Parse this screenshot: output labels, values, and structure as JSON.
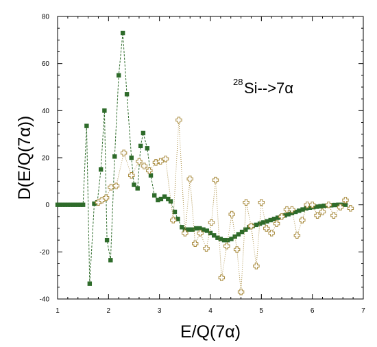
{
  "chart_data": {
    "type": "scatter",
    "title": "",
    "xlabel": "E/Q(7α)",
    "ylabel": "D(E/Q(7α))",
    "xlim": [
      1,
      7
    ],
    "ylim": [
      -40,
      80
    ],
    "xticks": [
      1,
      2,
      3,
      4,
      5,
      6,
      7
    ],
    "yticks": [
      -40,
      -20,
      0,
      20,
      40,
      60,
      80
    ],
    "grid": false,
    "legend": "none",
    "annotation": {
      "sup": "28",
      "main": "Si-->7α"
    },
    "series": [
      {
        "marker": "filled-square",
        "line": "dashed",
        "color": "#2e6b2a",
        "points": [
          [
            1.0,
            0
          ],
          [
            1.05,
            0
          ],
          [
            1.1,
            0
          ],
          [
            1.15,
            0
          ],
          [
            1.2,
            0
          ],
          [
            1.25,
            0
          ],
          [
            1.3,
            0
          ],
          [
            1.35,
            0
          ],
          [
            1.4,
            0
          ],
          [
            1.45,
            0
          ],
          [
            1.5,
            0
          ],
          [
            1.57,
            33.5
          ],
          [
            1.63,
            -33.5
          ],
          [
            1.72,
            0.5
          ],
          [
            1.78,
            1
          ],
          [
            1.85,
            15
          ],
          [
            1.92,
            40
          ],
          [
            1.97,
            -15
          ],
          [
            2.04,
            -23.5
          ],
          [
            2.12,
            20.5
          ],
          [
            2.2,
            55
          ],
          [
            2.28,
            73
          ],
          [
            2.36,
            47
          ],
          [
            2.45,
            20
          ],
          [
            2.5,
            8.5
          ],
          [
            2.57,
            7
          ],
          [
            2.63,
            25
          ],
          [
            2.68,
            30.5
          ],
          [
            2.76,
            24
          ],
          [
            2.83,
            12.5
          ],
          [
            2.9,
            4
          ],
          [
            2.97,
            2
          ],
          [
            3.03,
            2.5
          ],
          [
            3.1,
            3.5
          ],
          [
            3.17,
            2.5
          ],
          [
            3.22,
            1.5
          ],
          [
            3.3,
            -3
          ],
          [
            3.36,
            -6
          ],
          [
            3.44,
            -9.5
          ],
          [
            3.5,
            -10.5
          ],
          [
            3.58,
            -10.5
          ],
          [
            3.65,
            -10.5
          ],
          [
            3.72,
            -10
          ],
          [
            3.79,
            -10
          ],
          [
            3.86,
            -10.5
          ],
          [
            3.93,
            -11
          ],
          [
            4.0,
            -12
          ],
          [
            4.07,
            -13
          ],
          [
            4.14,
            -14
          ],
          [
            4.2,
            -14.5
          ],
          [
            4.27,
            -15
          ],
          [
            4.34,
            -15
          ],
          [
            4.41,
            -14.5
          ],
          [
            4.48,
            -13.5
          ],
          [
            4.55,
            -12.5
          ],
          [
            4.62,
            -11.5
          ],
          [
            4.69,
            -10.5
          ],
          [
            4.76,
            -9.5
          ],
          [
            4.83,
            -9
          ],
          [
            4.9,
            -8.5
          ],
          [
            4.97,
            -8
          ],
          [
            5.04,
            -7.5
          ],
          [
            5.11,
            -7
          ],
          [
            5.18,
            -6.5
          ],
          [
            5.25,
            -6
          ],
          [
            5.32,
            -5.5
          ],
          [
            5.39,
            -5
          ],
          [
            5.46,
            -4.5
          ],
          [
            5.53,
            -4
          ],
          [
            5.6,
            -3.5
          ],
          [
            5.67,
            -3
          ],
          [
            5.74,
            -2.5
          ],
          [
            5.81,
            -2
          ],
          [
            5.88,
            -1.5
          ],
          [
            5.95,
            -1.2
          ],
          [
            6.02,
            -1
          ],
          [
            6.09,
            -0.8
          ],
          [
            6.16,
            -0.6
          ],
          [
            6.23,
            -0.4
          ],
          [
            6.3,
            -0.3
          ],
          [
            6.37,
            -0.2
          ],
          [
            6.44,
            -0.1
          ],
          [
            6.51,
            0
          ],
          [
            6.58,
            0
          ],
          [
            6.65,
            0
          ]
        ]
      },
      {
        "marker": "open-cross",
        "line": "dotted",
        "color": "#a88a3c",
        "points": [
          [
            1.8,
            1
          ],
          [
            1.87,
            2
          ],
          [
            1.95,
            3
          ],
          [
            2.05,
            7.5
          ],
          [
            2.15,
            8
          ],
          [
            2.3,
            22
          ],
          [
            2.45,
            12.5
          ],
          [
            2.6,
            18.5
          ],
          [
            2.7,
            16.5
          ],
          [
            2.8,
            14.5
          ],
          [
            2.93,
            18
          ],
          [
            3.02,
            18.5
          ],
          [
            3.12,
            19.5
          ],
          [
            3.27,
            -6.5
          ],
          [
            3.38,
            36
          ],
          [
            3.5,
            -12
          ],
          [
            3.6,
            11
          ],
          [
            3.7,
            -16.5
          ],
          [
            3.8,
            -12
          ],
          [
            3.92,
            -18.5
          ],
          [
            4.02,
            -7.5
          ],
          [
            4.1,
            10.5
          ],
          [
            4.22,
            -31
          ],
          [
            4.32,
            -17.5
          ],
          [
            4.42,
            -4
          ],
          [
            4.52,
            -19
          ],
          [
            4.6,
            -37
          ],
          [
            4.7,
            1
          ],
          [
            4.8,
            -9
          ],
          [
            4.9,
            -26
          ],
          [
            5.0,
            1
          ],
          [
            5.1,
            -10
          ],
          [
            5.2,
            -12
          ],
          [
            5.3,
            -8
          ],
          [
            5.4,
            -5
          ],
          [
            5.5,
            -2
          ],
          [
            5.6,
            -2
          ],
          [
            5.7,
            -13
          ],
          [
            5.8,
            -6.5
          ],
          [
            5.9,
            0
          ],
          [
            6.0,
            0
          ],
          [
            6.1,
            -4.5
          ],
          [
            6.2,
            -3
          ],
          [
            6.32,
            0
          ],
          [
            6.42,
            -4.5
          ],
          [
            6.55,
            -1
          ],
          [
            6.65,
            2
          ],
          [
            6.75,
            -1.5
          ]
        ]
      }
    ]
  }
}
